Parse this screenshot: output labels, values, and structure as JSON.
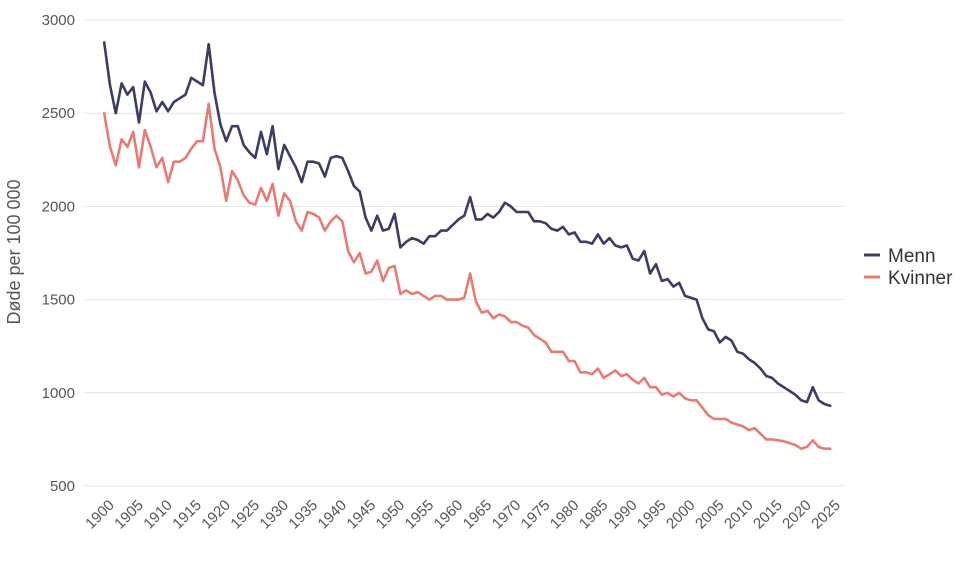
{
  "chart_data": {
    "type": "line",
    "title": "",
    "xlabel": "",
    "ylabel": "Døde per 100 000",
    "xlim": [
      1900,
      2025
    ],
    "ylim": [
      500,
      3000
    ],
    "xticks": [
      1900,
      1905,
      1910,
      1915,
      1920,
      1925,
      1930,
      1935,
      1940,
      1945,
      1950,
      1955,
      1960,
      1965,
      1970,
      1975,
      1980,
      1985,
      1990,
      1995,
      2000,
      2005,
      2010,
      2015,
      2020,
      2025
    ],
    "yticks": [
      500,
      1000,
      1500,
      2000,
      2500,
      3000
    ],
    "grid": "horizontal",
    "legend_position": "right",
    "series": [
      {
        "name": "Menn",
        "color": "#3b3d63",
        "x": [
          1899,
          1900,
          1901,
          1902,
          1903,
          1904,
          1905,
          1906,
          1907,
          1908,
          1909,
          1910,
          1911,
          1912,
          1913,
          1914,
          1915,
          1916,
          1917,
          1918,
          1919,
          1920,
          1921,
          1922,
          1923,
          1924,
          1925,
          1926,
          1927,
          1928,
          1929,
          1930,
          1931,
          1932,
          1933,
          1934,
          1935,
          1936,
          1937,
          1938,
          1939,
          1940,
          1941,
          1942,
          1943,
          1944,
          1945,
          1946,
          1947,
          1948,
          1949,
          1950,
          1951,
          1952,
          1953,
          1954,
          1955,
          1956,
          1957,
          1958,
          1959,
          1960,
          1961,
          1962,
          1963,
          1964,
          1965,
          1966,
          1967,
          1968,
          1969,
          1970,
          1971,
          1972,
          1973,
          1974,
          1975,
          1976,
          1977,
          1978,
          1979,
          1980,
          1981,
          1982,
          1983,
          1984,
          1985,
          1986,
          1987,
          1988,
          1989,
          1990,
          1991,
          1992,
          1993,
          1994,
          1995,
          1996,
          1997,
          1998,
          1999,
          2000,
          2001,
          2002,
          2003,
          2004,
          2005,
          2006,
          2007,
          2008,
          2009,
          2010,
          2011,
          2012,
          2013,
          2014,
          2015,
          2016,
          2017,
          2018,
          2019,
          2020,
          2021,
          2022,
          2023,
          2024
        ],
        "values": [
          2880,
          2650,
          2500,
          2660,
          2600,
          2640,
          2450,
          2670,
          2610,
          2510,
          2560,
          2510,
          2560,
          2580,
          2600,
          2690,
          2670,
          2650,
          2870,
          2610,
          2440,
          2350,
          2430,
          2430,
          2330,
          2290,
          2260,
          2400,
          2280,
          2430,
          2200,
          2330,
          2270,
          2210,
          2130,
          2240,
          2240,
          2230,
          2160,
          2260,
          2270,
          2260,
          2190,
          2110,
          2080,
          1940,
          1870,
          1950,
          1870,
          1880,
          1960,
          1780,
          1810,
          1830,
          1820,
          1800,
          1840,
          1840,
          1870,
          1870,
          1900,
          1930,
          1950,
          2050,
          1930,
          1930,
          1960,
          1940,
          1970,
          2020,
          2000,
          1970,
          1970,
          1970,
          1920,
          1920,
          1910,
          1880,
          1870,
          1890,
          1850,
          1860,
          1810,
          1810,
          1800,
          1850,
          1800,
          1830,
          1790,
          1780,
          1790,
          1720,
          1710,
          1760,
          1640,
          1690,
          1600,
          1610,
          1570,
          1590,
          1520,
          1510,
          1500,
          1400,
          1340,
          1330,
          1270,
          1300,
          1280,
          1220,
          1210,
          1180,
          1160,
          1130,
          1090,
          1080,
          1050,
          1030,
          1010,
          990,
          960,
          950,
          1030,
          960,
          940,
          930
        ]
      },
      {
        "name": "Kvinner",
        "color": "#e67c73",
        "x": [
          1899,
          1900,
          1901,
          1902,
          1903,
          1904,
          1905,
          1906,
          1907,
          1908,
          1909,
          1910,
          1911,
          1912,
          1913,
          1914,
          1915,
          1916,
          1917,
          1918,
          1919,
          1920,
          1921,
          1922,
          1923,
          1924,
          1925,
          1926,
          1927,
          1928,
          1929,
          1930,
          1931,
          1932,
          1933,
          1934,
          1935,
          1936,
          1937,
          1938,
          1939,
          1940,
          1941,
          1942,
          1943,
          1944,
          1945,
          1946,
          1947,
          1948,
          1949,
          1950,
          1951,
          1952,
          1953,
          1954,
          1955,
          1956,
          1957,
          1958,
          1959,
          1960,
          1961,
          1962,
          1963,
          1964,
          1965,
          1966,
          1967,
          1968,
          1969,
          1970,
          1971,
          1972,
          1973,
          1974,
          1975,
          1976,
          1977,
          1978,
          1979,
          1980,
          1981,
          1982,
          1983,
          1984,
          1985,
          1986,
          1987,
          1988,
          1989,
          1990,
          1991,
          1992,
          1993,
          1994,
          1995,
          1996,
          1997,
          1998,
          1999,
          2000,
          2001,
          2002,
          2003,
          2004,
          2005,
          2006,
          2007,
          2008,
          2009,
          2010,
          2011,
          2012,
          2013,
          2014,
          2015,
          2016,
          2017,
          2018,
          2019,
          2020,
          2021,
          2022,
          2023,
          2024
        ],
        "values": [
          2500,
          2320,
          2220,
          2360,
          2320,
          2400,
          2210,
          2410,
          2320,
          2210,
          2260,
          2130,
          2240,
          2240,
          2260,
          2310,
          2350,
          2350,
          2550,
          2310,
          2210,
          2030,
          2190,
          2140,
          2060,
          2020,
          2010,
          2100,
          2030,
          2120,
          1950,
          2070,
          2030,
          1920,
          1870,
          1970,
          1960,
          1940,
          1870,
          1920,
          1950,
          1920,
          1760,
          1700,
          1750,
          1640,
          1650,
          1710,
          1600,
          1670,
          1680,
          1530,
          1550,
          1530,
          1540,
          1520,
          1500,
          1520,
          1520,
          1500,
          1500,
          1500,
          1510,
          1640,
          1490,
          1430,
          1440,
          1400,
          1420,
          1410,
          1380,
          1380,
          1360,
          1350,
          1310,
          1290,
          1270,
          1220,
          1220,
          1220,
          1170,
          1170,
          1110,
          1110,
          1100,
          1130,
          1080,
          1100,
          1120,
          1090,
          1100,
          1070,
          1050,
          1080,
          1030,
          1030,
          990,
          1000,
          980,
          1000,
          970,
          960,
          960,
          920,
          880,
          860,
          860,
          860,
          840,
          830,
          820,
          800,
          810,
          780,
          750,
          750,
          745,
          740,
          730,
          720,
          700,
          710,
          745,
          710,
          700,
          700
        ]
      }
    ]
  }
}
